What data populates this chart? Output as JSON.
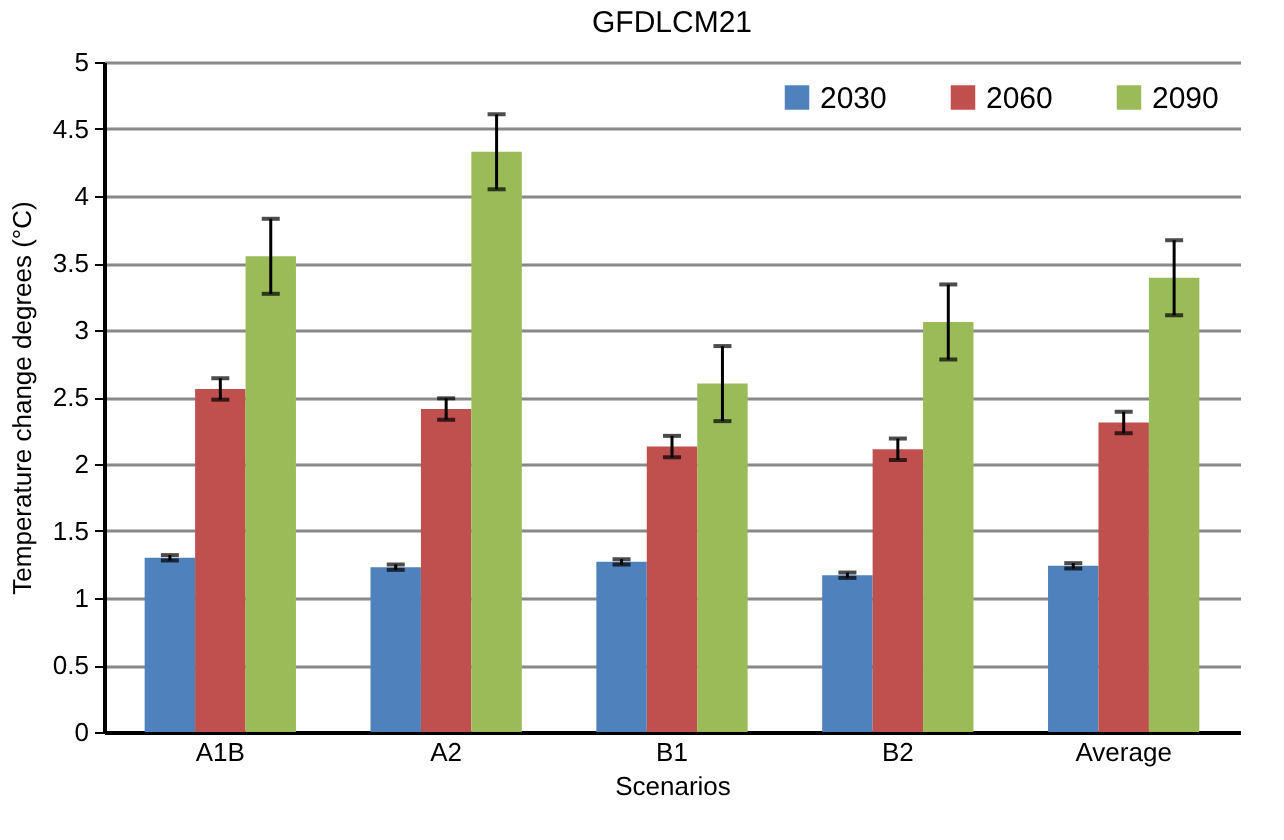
{
  "chart_data": {
    "type": "bar",
    "title": "GFDLCM21",
    "xlabel": "Scenarios",
    "ylabel": "Temperature change degrees (°C)",
    "categories": [
      "A1B",
      "A2",
      "B1",
      "B2",
      "Average"
    ],
    "series": [
      {
        "name": "2030",
        "color": "#4f81bd",
        "values": [
          1.3,
          1.23,
          1.27,
          1.17,
          1.24
        ],
        "errors": [
          0.02,
          0.02,
          0.02,
          0.02,
          0.02
        ]
      },
      {
        "name": "2060",
        "color": "#c0504d",
        "values": [
          2.56,
          2.41,
          2.13,
          2.11,
          2.31
        ],
        "errors": [
          0.08,
          0.08,
          0.08,
          0.08,
          0.08
        ]
      },
      {
        "name": "2090",
        "color": "#9bbb59",
        "values": [
          3.55,
          4.33,
          2.6,
          3.06,
          3.39
        ],
        "errors": [
          0.28,
          0.28,
          0.28,
          0.28,
          0.28
        ]
      }
    ],
    "ylim": [
      0,
      5
    ],
    "yticks": [
      0,
      0.5,
      1,
      1.5,
      2,
      2.5,
      3,
      3.5,
      4,
      4.5,
      5
    ],
    "grid": "y",
    "legend": "top right"
  }
}
